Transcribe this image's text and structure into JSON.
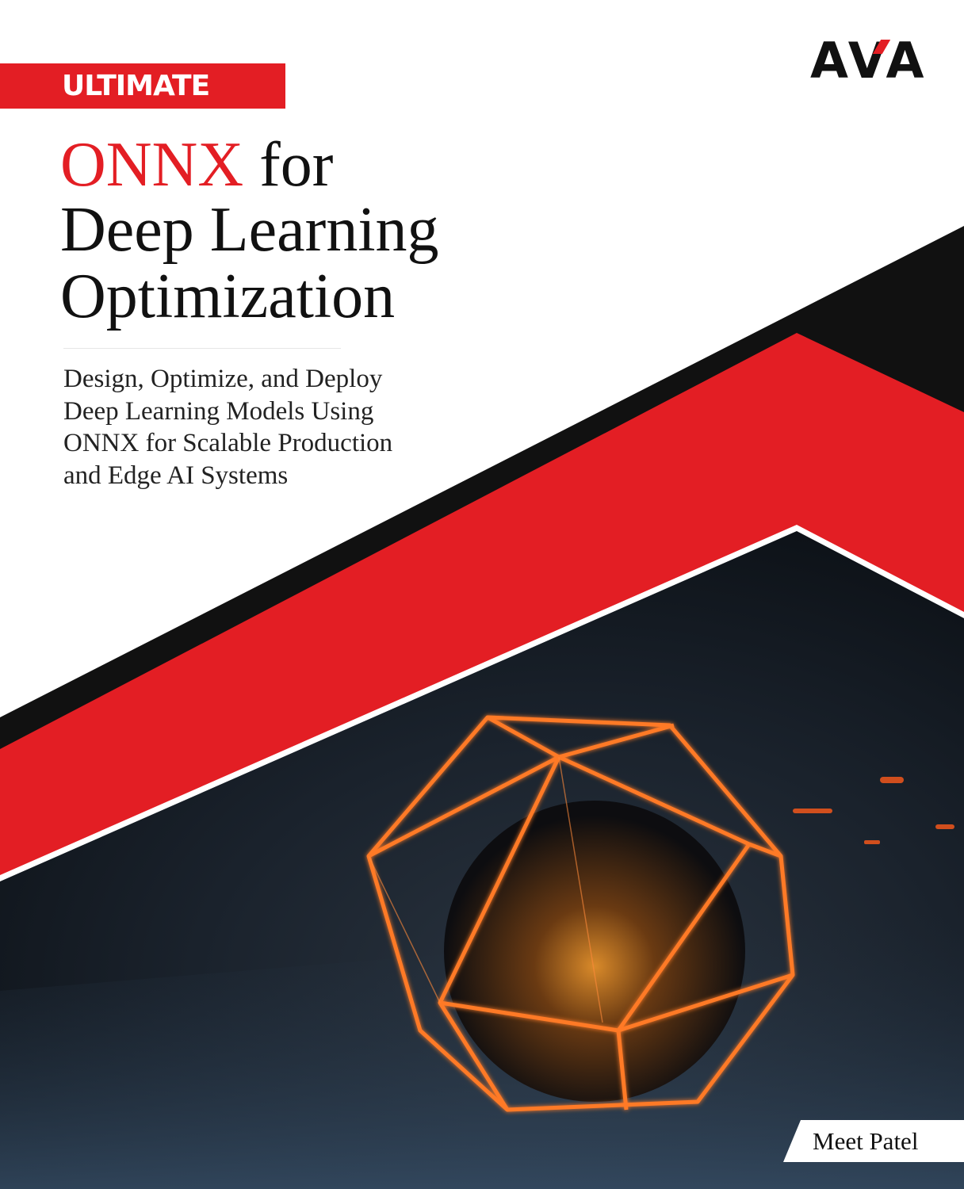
{
  "cover": {
    "series_label": "ULTIMATE",
    "title": {
      "highlight": "ONNX",
      "line1_rest": " for",
      "line2": "Deep Learning",
      "line3": "Optimization"
    },
    "subtitle_lines": [
      "Design, Optimize, and Deploy",
      "Deep Learning Models Using",
      "ONNX for Scalable Production",
      "and Edge AI Systems"
    ],
    "author": "Meet Patel",
    "publisher_logo": "AVA",
    "colors": {
      "accent_red": "#e31e24",
      "black": "#111111",
      "glow_orange": "#ff6a1a"
    }
  }
}
